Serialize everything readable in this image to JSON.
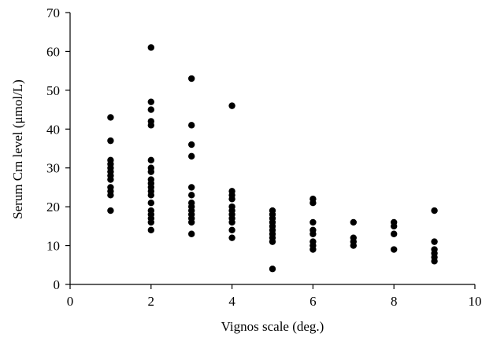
{
  "chart_data": {
    "type": "scatter",
    "title": "",
    "xlabel": "Vignos scale (deg.)",
    "ylabel": "Serum Crn level (μmol/L)",
    "xlim": [
      0,
      10
    ],
    "ylim": [
      0,
      70
    ],
    "xticks": [
      0,
      2,
      4,
      6,
      8,
      10
    ],
    "yticks": [
      0,
      10,
      20,
      30,
      40,
      50,
      60,
      70
    ],
    "grid": false,
    "legend": "none",
    "marker_color": "#000000",
    "series": [
      {
        "points": [
          [
            1,
            19
          ],
          [
            1,
            23
          ],
          [
            1,
            24
          ],
          [
            1,
            25
          ],
          [
            1,
            27
          ],
          [
            1,
            28
          ],
          [
            1,
            29
          ],
          [
            1,
            30
          ],
          [
            1,
            31
          ],
          [
            1,
            32
          ],
          [
            1,
            37
          ],
          [
            1,
            43
          ],
          [
            2,
            14
          ],
          [
            2,
            16
          ],
          [
            2,
            17
          ],
          [
            2,
            18
          ],
          [
            2,
            19
          ],
          [
            2,
            21
          ],
          [
            2,
            23
          ],
          [
            2,
            24
          ],
          [
            2,
            25
          ],
          [
            2,
            26
          ],
          [
            2,
            27
          ],
          [
            2,
            29
          ],
          [
            2,
            30
          ],
          [
            2,
            32
          ],
          [
            2,
            41
          ],
          [
            2,
            42
          ],
          [
            2,
            45
          ],
          [
            2,
            47
          ],
          [
            2,
            61
          ],
          [
            3,
            13
          ],
          [
            3,
            16
          ],
          [
            3,
            17
          ],
          [
            3,
            18
          ],
          [
            3,
            19
          ],
          [
            3,
            20
          ],
          [
            3,
            21
          ],
          [
            3,
            23
          ],
          [
            3,
            25
          ],
          [
            3,
            33
          ],
          [
            3,
            36
          ],
          [
            3,
            41
          ],
          [
            3,
            53
          ],
          [
            4,
            12
          ],
          [
            4,
            14
          ],
          [
            4,
            16
          ],
          [
            4,
            17
          ],
          [
            4,
            18
          ],
          [
            4,
            19
          ],
          [
            4,
            20
          ],
          [
            4,
            22
          ],
          [
            4,
            23
          ],
          [
            4,
            24
          ],
          [
            4,
            46
          ],
          [
            5,
            4
          ],
          [
            5,
            11
          ],
          [
            5,
            12
          ],
          [
            5,
            13
          ],
          [
            5,
            14
          ],
          [
            5,
            15
          ],
          [
            5,
            16
          ],
          [
            5,
            17
          ],
          [
            5,
            18
          ],
          [
            5,
            19
          ],
          [
            6,
            9
          ],
          [
            6,
            10
          ],
          [
            6,
            11
          ],
          [
            6,
            13
          ],
          [
            6,
            14
          ],
          [
            6,
            16
          ],
          [
            6,
            21
          ],
          [
            6,
            22
          ],
          [
            7,
            10
          ],
          [
            7,
            11
          ],
          [
            7,
            12
          ],
          [
            7,
            16
          ],
          [
            8,
            9
          ],
          [
            8,
            13
          ],
          [
            8,
            15
          ],
          [
            8,
            16
          ],
          [
            9,
            6
          ],
          [
            9,
            7
          ],
          [
            9,
            8
          ],
          [
            9,
            9
          ],
          [
            9,
            11
          ],
          [
            9,
            19
          ]
        ]
      }
    ]
  }
}
